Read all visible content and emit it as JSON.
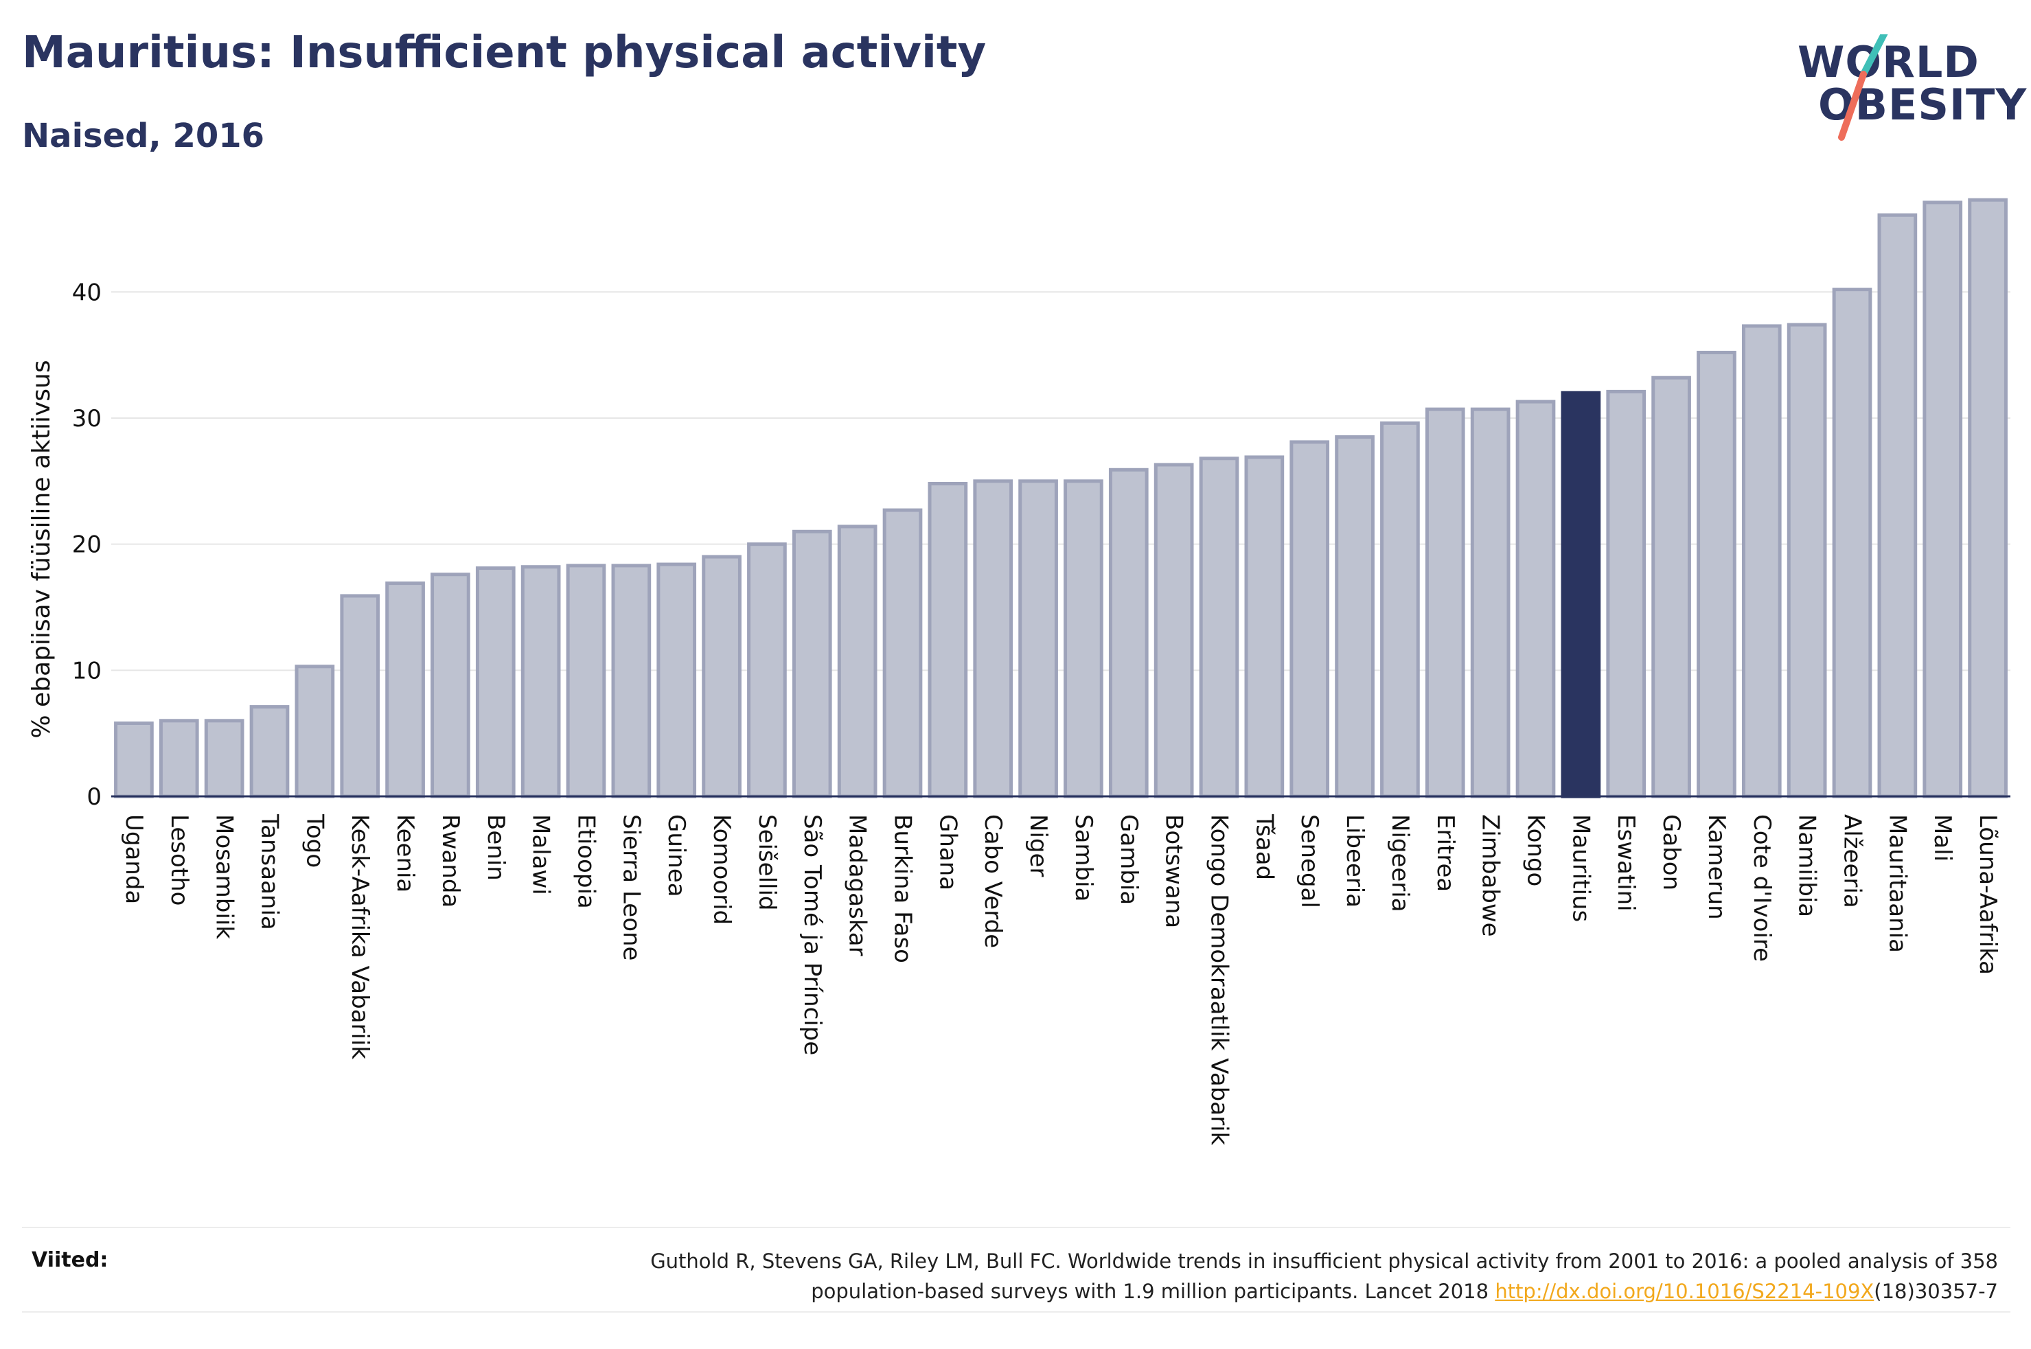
{
  "header": {
    "title": "Mauritius: Insufficient physical activity",
    "subtitle": "Naised, 2016"
  },
  "logo": {
    "line1": "WORLD",
    "line2": "OBESITY",
    "slash_colors": [
      "#3fbfb7",
      "#ee6d5a"
    ]
  },
  "colors": {
    "bar_default": "#bec2d0",
    "bar_default_stroke": "#9ea3ba",
    "bar_highlight": "#2a3460",
    "axis_line": "#2a3460",
    "grid": "#e6e6e6",
    "text": "#2a3460",
    "link": "#f2a81d"
  },
  "chart_data": {
    "type": "bar",
    "title": "Mauritius: Insufficient physical activity",
    "subtitle": "Naised, 2016",
    "xlabel": "",
    "ylabel": "% ebapiisav füüsiline aktiivsus",
    "ylim": [
      0,
      49
    ],
    "yticks": [
      0,
      10,
      20,
      30,
      40
    ],
    "grid": true,
    "highlight": "Mauritius",
    "categories": [
      "Uganda",
      "Lesotho",
      "Mosambiik",
      "Tansaania",
      "Togo",
      "Kesk-Aafrika Vabariik",
      "Keenia",
      "Rwanda",
      "Benin",
      "Malawi",
      "Etioopia",
      "Sierra Leone",
      "Guinea",
      "Komoorid",
      "Seišellid",
      "São Tomé ja Príncipe",
      "Madagaskar",
      "Burkina Faso",
      "Ghana",
      "Cabo Verde",
      "Niger",
      "Sambia",
      "Gambia",
      "Botswana",
      "Kongo Demokraatlik Vabarik",
      "Tšaad",
      "Senegal",
      "Libeeria",
      "Nigeeria",
      "Eritrea",
      "Zimbabwe",
      "Kongo",
      "Mauritius",
      "Eswatini",
      "Gabon",
      "Kamerun",
      "Cote d'Ivoire",
      "Namiibia",
      "Alžeeria",
      "Mauritaania",
      "Mali",
      "Lõuna-Aafrika"
    ],
    "values": [
      5.8,
      6.0,
      6.0,
      7.1,
      10.3,
      15.9,
      16.9,
      17.6,
      18.1,
      18.2,
      18.3,
      18.3,
      18.4,
      19.0,
      20.0,
      21.0,
      21.4,
      22.7,
      24.8,
      25.0,
      25.0,
      25.0,
      25.9,
      26.3,
      26.8,
      26.9,
      28.1,
      28.5,
      29.6,
      30.7,
      30.7,
      31.3,
      32.0,
      32.1,
      33.2,
      35.2,
      37.3,
      37.4,
      40.2,
      46.1,
      47.1,
      47.3
    ]
  },
  "footer": {
    "label": "Viited:",
    "text_line1": "Guthold R, Stevens GA, Riley LM, Bull FC. Worldwide trends in insufficient physical activity from 2001 to 2016: a pooled analysis of 358",
    "text_line2_pre": "population-based surveys with 1.9 million participants. Lancet 2018 ",
    "link": "http://dx.doi.org/10.1016/S2214-109X",
    "text_line2_post": "(18)30357-7"
  }
}
